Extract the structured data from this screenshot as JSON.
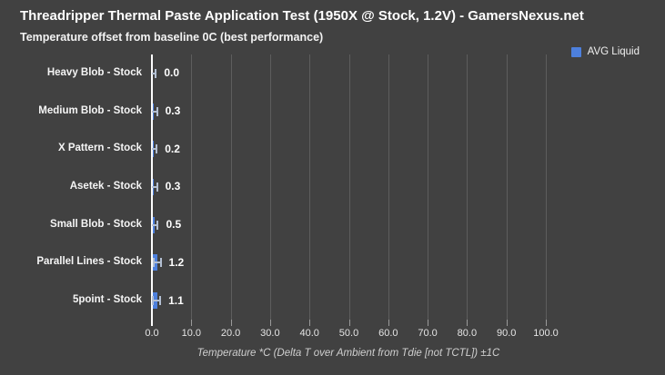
{
  "header": {
    "title": "Threadripper Thermal Paste Application Test (1950X @ Stock, 1.2V) - GamersNexus.net",
    "subtitle": "Temperature offset from baseline 0C (best performance)"
  },
  "legend": {
    "label": "AVG Liquid",
    "swatch_color": "#4d80dd"
  },
  "chart_data": {
    "type": "bar",
    "orientation": "horizontal",
    "title": "Threadripper Thermal Paste Application Test (1950X @ Stock, 1.2V) - GamersNexus.net",
    "subtitle": "Temperature offset from baseline 0C (best performance)",
    "categories": [
      "Heavy Blob - Stock",
      "Medium Blob  - Stock",
      "X Pattern - Stock",
      "Asetek - Stock",
      "Small Blob - Stock",
      "Parallel Lines - Stock",
      "5point - Stock"
    ],
    "series": [
      {
        "name": "AVG Liquid",
        "values": [
          0.0,
          0.3,
          0.2,
          0.3,
          0.5,
          1.2,
          1.1
        ]
      }
    ],
    "value_labels": [
      "0.0",
      "0.3",
      "0.2",
      "0.3",
      "0.5",
      "1.2",
      "1.1"
    ],
    "error_bar_plus_minus": 1.0,
    "xlabel": "Temperature *C (Delta T over Ambient from Tdie [not TCTL]) ±1C",
    "x_ticks": [
      0,
      10,
      20,
      30,
      40,
      50,
      60,
      70,
      80,
      90,
      100
    ],
    "x_tick_labels": [
      "0.0",
      "10.0",
      "20.0",
      "30.0",
      "40.0",
      "50.0",
      "60.0",
      "70.0",
      "80.0",
      "90.0",
      "100.0"
    ],
    "xlim": [
      0,
      106.5
    ],
    "grid": true,
    "legend_entries": [
      "AVG Liquid"
    ],
    "legend_position": "top-right"
  },
  "colors": {
    "background": "#414141",
    "bar": "#4d80dd",
    "error_bar": "#b3bfd2",
    "gridline": "#5d5d5d",
    "zero_line": "#fdfdfd",
    "title_text": "#ffffff",
    "axis_text": "#e4e4e4"
  }
}
